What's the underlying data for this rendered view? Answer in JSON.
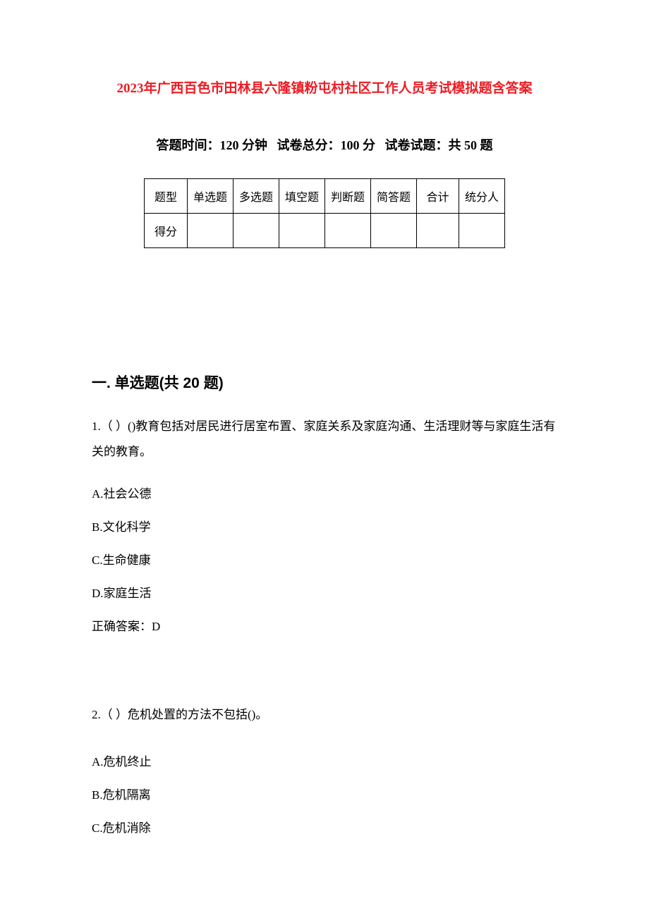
{
  "title": {
    "text": "2023 年广西百色市田林县六隆镇粉屯村社区工作人员考试模拟题含答案",
    "color": "#ed1c24",
    "year_part": "2023",
    "rest_part": "年广西百色市田林县六隆镇粉屯村社区工作人员考试模拟题含答案"
  },
  "exam_info": {
    "time_label": "答题时间：",
    "time_value": "120 分钟",
    "score_label": "试卷总分：",
    "score_value": "100 分",
    "count_label": "试卷试题：",
    "count_value": "共 50 题"
  },
  "score_table": {
    "row1": [
      "题型",
      "单选题",
      "多选题",
      "填空题",
      "判断题",
      "简答题",
      "合计",
      "统分人"
    ],
    "row2": [
      "得分",
      "",
      "",
      "",
      "",
      "",
      "",
      ""
    ]
  },
  "section1": {
    "heading": "一. 单选题(共 20 题)",
    "q1": {
      "text": "1.（  ）()教育包括对居民进行居室布置、家庭关系及家庭沟通、生活理财等与家庭生活有关的教育。",
      "options": {
        "a": "A.社会公德",
        "b": "B.文化科学",
        "c": "C.生命健康",
        "d": "D.家庭生活"
      },
      "answer": "正确答案：D"
    },
    "q2": {
      "text": "2.（  ）危机处置的方法不包括()。",
      "options": {
        "a": "A.危机终止",
        "b": "B.危机隔离",
        "c": "C.危机消除"
      }
    }
  },
  "styling": {
    "title_color": "#ed1c24",
    "body_bg": "#ffffff",
    "text_color": "#000000",
    "border_color": "#000000",
    "title_fontsize": 19,
    "info_fontsize": 18,
    "heading_fontsize": 21,
    "body_fontsize": 17,
    "table_fontsize": 16
  }
}
